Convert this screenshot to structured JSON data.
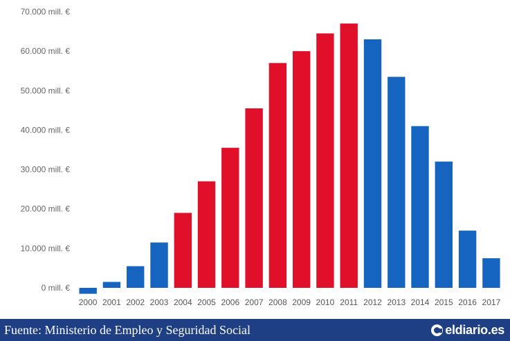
{
  "chart_data": {
    "type": "bar",
    "categories": [
      "2000",
      "2001",
      "2002",
      "2003",
      "2004",
      "2005",
      "2006",
      "2007",
      "2008",
      "2009",
      "2010",
      "2011",
      "2012",
      "2013",
      "2014",
      "2015",
      "2016",
      "2017"
    ],
    "values": [
      -1500,
      1500,
      5500,
      11500,
      19000,
      27000,
      35500,
      45500,
      57000,
      60000,
      64500,
      67000,
      63000,
      53500,
      41000,
      32000,
      14500,
      7500
    ],
    "bar_colors": [
      "#1565c0",
      "#1565c0",
      "#1565c0",
      "#1565c0",
      "#e0102b",
      "#e0102b",
      "#e0102b",
      "#e0102b",
      "#e0102b",
      "#e0102b",
      "#e0102b",
      "#e0102b",
      "#1565c0",
      "#1565c0",
      "#1565c0",
      "#1565c0",
      "#1565c0",
      "#1565c0"
    ],
    "y_ticks": [
      0,
      10000,
      20000,
      30000,
      40000,
      50000,
      60000,
      70000
    ],
    "y_tick_labels": [
      "0 mill. €",
      "10.000 mill. €",
      "20.000 mill. €",
      "30.000 mill. €",
      "40.000 mill. €",
      "50.000 mill. €",
      "60.000 mill. €",
      "70.000 mill. €"
    ],
    "ylim": [
      -2000,
      70000
    ],
    "grid": false,
    "title": "",
    "xlabel": "",
    "ylabel": ""
  },
  "footer": {
    "source": "Fuente: Ministerio de Empleo y Seguridad Social",
    "brand": "eldiario.es",
    "brand_icon": "eldiario-logo-icon"
  },
  "colors": {
    "red": "#e0102b",
    "blue": "#1565c0",
    "footer_bg": "#1f3f84"
  }
}
